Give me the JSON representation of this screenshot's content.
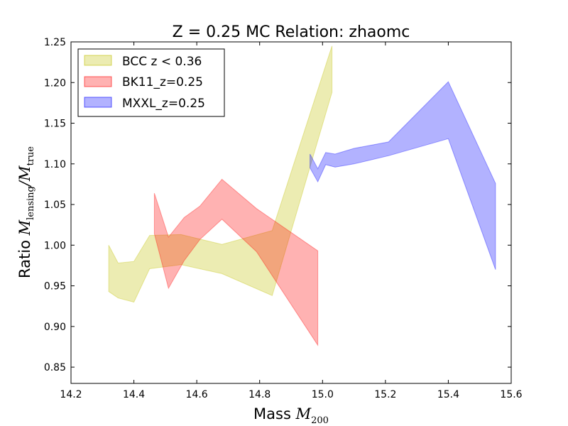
{
  "chart_data": {
    "type": "area",
    "title": "Z = 0.25 MC Relation: zhaomc",
    "xlabel": {
      "prefix": "Mass ",
      "symbol": "M",
      "subscript": "200"
    },
    "ylabel": {
      "prefix": "Ratio ",
      "num_symbol": "M",
      "num_sub": "lensing",
      "den_symbol": "M",
      "den_sub": "true"
    },
    "xlim": [
      14.2,
      15.6
    ],
    "ylim": [
      0.83,
      1.25
    ],
    "xticks": [
      14.2,
      14.4,
      14.6,
      14.8,
      15.0,
      15.2,
      15.4,
      15.6
    ],
    "yticks": [
      0.85,
      0.9,
      0.95,
      1.0,
      1.05,
      1.1,
      1.15,
      1.2,
      1.25
    ],
    "xtick_labels": [
      "14.2",
      "14.4",
      "14.6",
      "14.8",
      "15.0",
      "15.2",
      "15.4",
      "15.6"
    ],
    "ytick_labels": [
      "0.85",
      "0.90",
      "0.95",
      "1.00",
      "1.05",
      "1.10",
      "1.15",
      "1.20",
      "1.25"
    ],
    "grid": false,
    "legend_position": "top-left",
    "series": [
      {
        "name": "BCC z < 0.36",
        "color": "#bfbf00",
        "fill_opacity": 0.3,
        "x": [
          14.32,
          14.35,
          14.4,
          14.45,
          14.55,
          14.68,
          14.84,
          15.03
        ],
        "upper": [
          1.0,
          0.978,
          0.98,
          1.012,
          1.013,
          1.001,
          1.018,
          1.245
        ],
        "lower": [
          0.943,
          0.935,
          0.93,
          0.971,
          0.976,
          0.965,
          0.938,
          1.188
        ]
      },
      {
        "name": "BK11_z=0.25",
        "color": "#ff0000",
        "fill_opacity": 0.3,
        "x": [
          14.465,
          14.51,
          14.56,
          14.61,
          14.68,
          14.79,
          14.985
        ],
        "upper": [
          1.064,
          1.01,
          1.034,
          1.048,
          1.081,
          1.045,
          0.993
        ],
        "lower": [
          1.014,
          0.947,
          0.981,
          1.007,
          1.032,
          0.992,
          0.877
        ]
      },
      {
        "name": "MXXL_z=0.25",
        "color": "#0000ff",
        "fill_opacity": 0.3,
        "x": [
          14.96,
          14.985,
          15.01,
          15.04,
          15.1,
          15.21,
          15.4,
          15.55
        ],
        "upper": [
          1.112,
          1.094,
          1.114,
          1.112,
          1.119,
          1.127,
          1.201,
          1.076
        ],
        "lower": [
          1.095,
          1.078,
          1.099,
          1.096,
          1.1,
          1.11,
          1.131,
          0.97
        ]
      }
    ]
  }
}
